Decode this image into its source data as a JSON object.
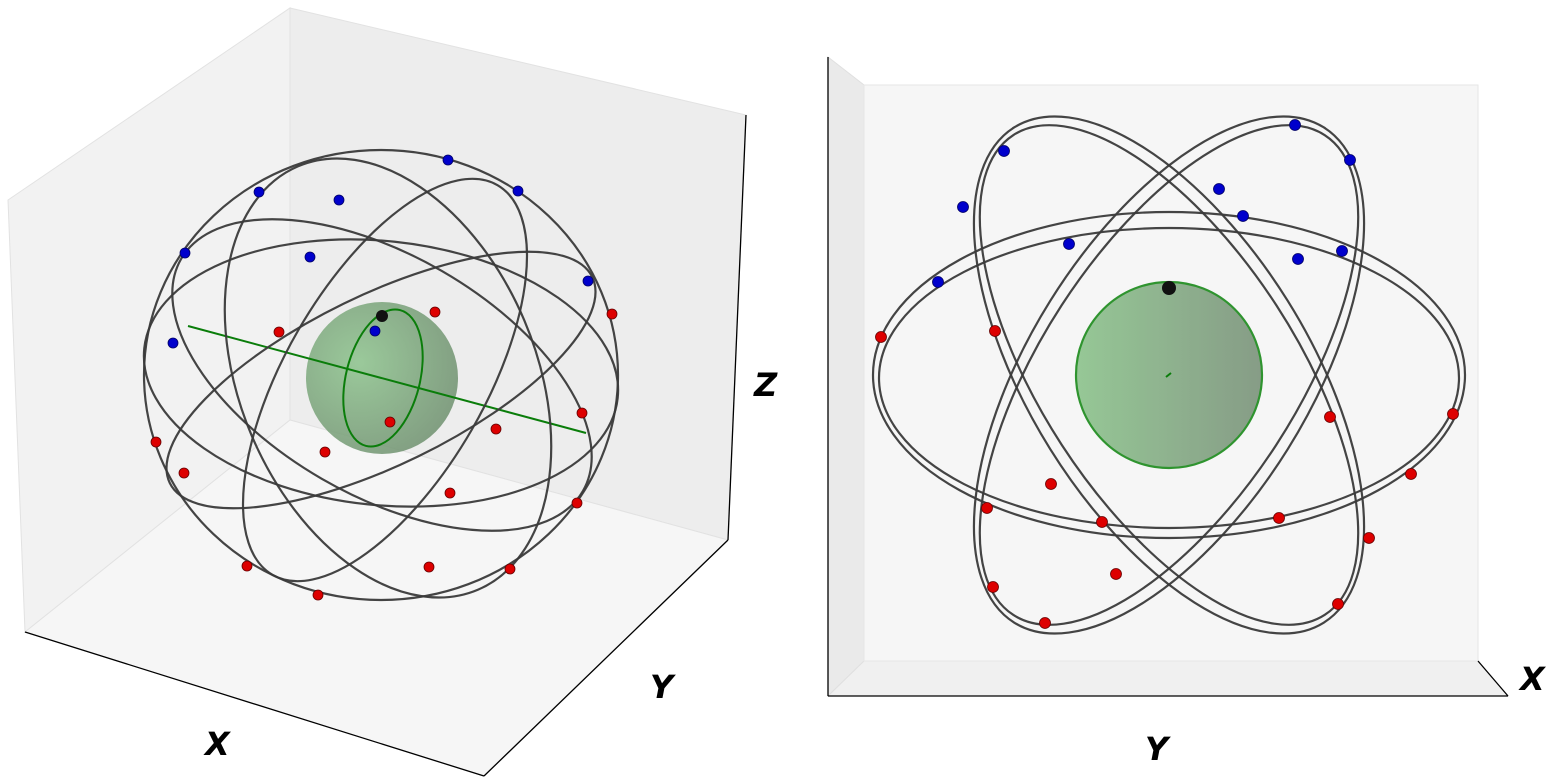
{
  "figure": {
    "colors": {
      "pane_light": "#f5f5f5",
      "pane_mid": "#eeeeee",
      "pane_dark": "#e6e6e6",
      "pane_edge": "#dddddd",
      "axis_line": "#000000",
      "orbit": "#3a3a3a",
      "earth_fill": "#6aa56a",
      "earth_edge": "#1a8a1a",
      "axis_green": "#0a7d0a",
      "sat_blue": "#0000cc",
      "sat_red": "#dd0000",
      "marker_black": "#111111"
    },
    "panels": [
      {
        "id": "perspective-3d-view",
        "axis_labels": {
          "x": "X",
          "y": "Y",
          "z": "Z"
        }
      },
      {
        "id": "top-down-view",
        "axis_labels": {
          "x": "X",
          "y": "Y"
        }
      }
    ]
  }
}
